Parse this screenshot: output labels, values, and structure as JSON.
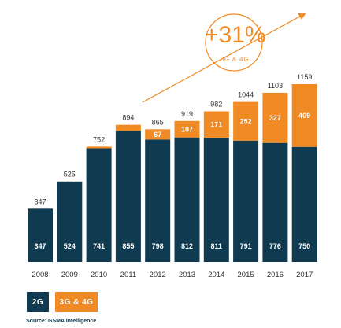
{
  "growth": {
    "value": "+31%",
    "label": "3G & 4G"
  },
  "legend": {
    "items": [
      "2G",
      "3G & 4G"
    ]
  },
  "source": "Source: GSMA Intelligence",
  "colors": {
    "2g": "#0f3a4f",
    "3g4g": "#f08a24",
    "text": "#333333",
    "growth": "#f08a24"
  },
  "chart_data": {
    "type": "bar",
    "stacked": true,
    "categories": [
      "2008",
      "2009",
      "2010",
      "2011",
      "2012",
      "2013",
      "2014",
      "2015",
      "2016",
      "2017"
    ],
    "series": [
      {
        "name": "2G",
        "values": [
          347,
          524,
          741,
          855,
          798,
          812,
          811,
          791,
          776,
          750
        ]
      },
      {
        "name": "3G & 4G",
        "values": [
          0,
          1,
          11,
          39,
          67,
          107,
          171,
          252,
          327,
          409
        ]
      }
    ],
    "totals": [
      347,
      525,
      752,
      894,
      865,
      919,
      982,
      1044,
      1103,
      1159
    ],
    "ylim": [
      0,
      1159
    ],
    "grid": false,
    "legend_position": "bottom-left"
  }
}
